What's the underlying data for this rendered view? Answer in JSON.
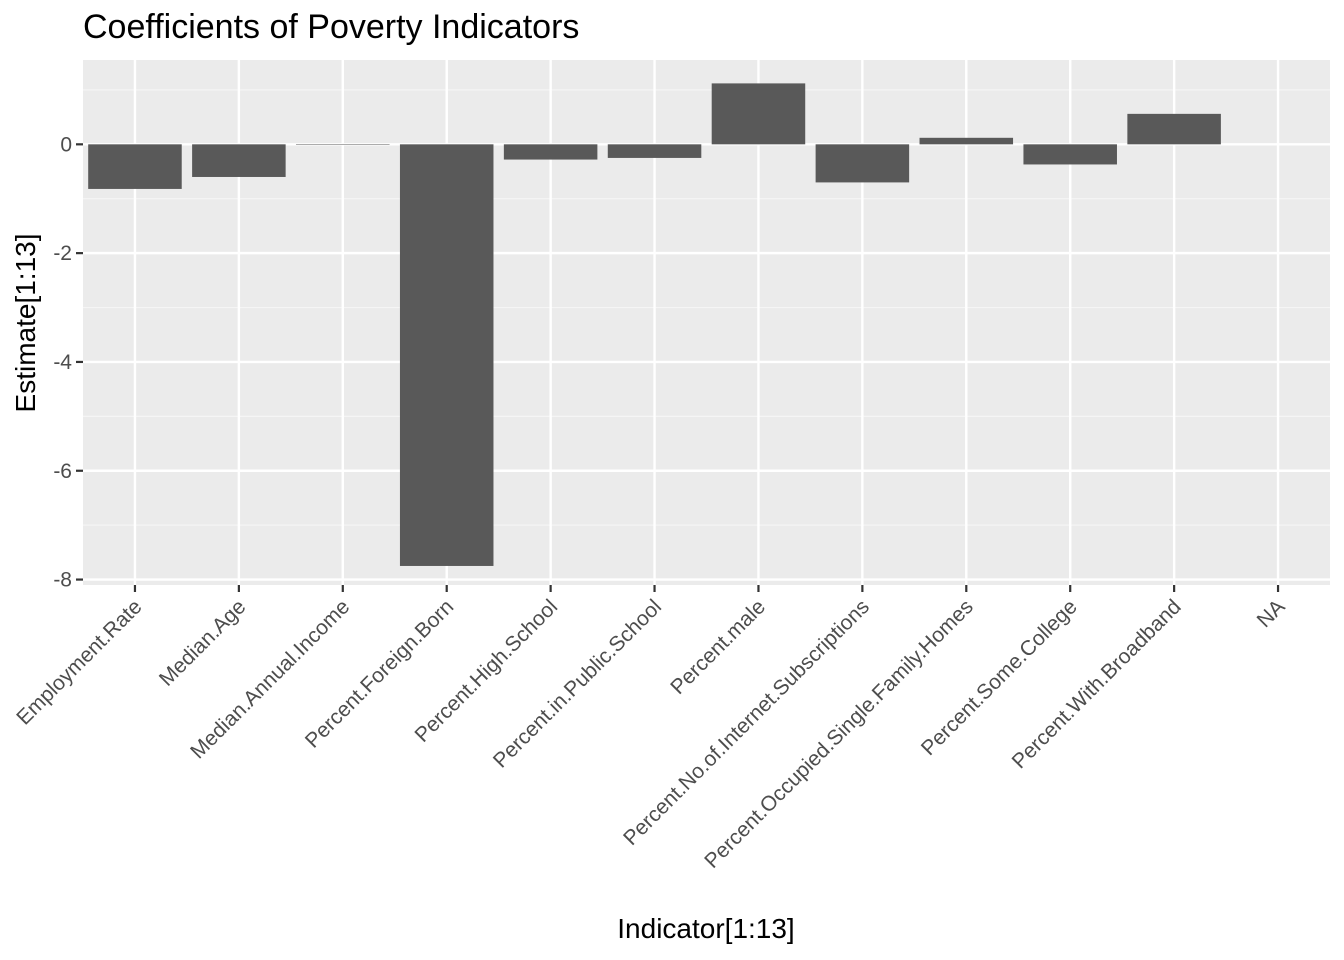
{
  "chart_data": {
    "type": "bar",
    "title": "Coefficients of Poverty Indicators",
    "xlabel": "Indicator[1:13]",
    "ylabel": "Estimate[1:13]",
    "categories": [
      "Employment.Rate",
      "Median.Age",
      "Median.Annual.Income",
      "Percent.Foreign.Born",
      "Percent.High.School",
      "Percent.in.Public.School",
      "Percent.male",
      "Percent.No.of.Internet.Subscriptions",
      "Percent.Occupied.Single.Family.Homes",
      "Percent.Some.College",
      "Percent.With.Broadband",
      "NA"
    ],
    "values": [
      -0.82,
      -0.6,
      0.0,
      -7.75,
      -0.28,
      -0.25,
      1.12,
      -0.7,
      0.12,
      -0.37,
      0.56,
      null
    ],
    "ylim": [
      -8.1,
      1.55
    ],
    "yticks": [
      0,
      -2,
      -4,
      -6,
      -8
    ],
    "ytick_labels": [
      "0",
      "-2",
      "-4",
      "-6",
      "-8"
    ],
    "grid": true,
    "legend": "none",
    "colors": {
      "bar": "#595959",
      "panel": "#ebebeb",
      "grid_major": "#ffffff",
      "grid_minor": "#f5f5f5",
      "tick": "#333333",
      "tick_text": "#4d4d4d",
      "text": "#000000"
    }
  }
}
